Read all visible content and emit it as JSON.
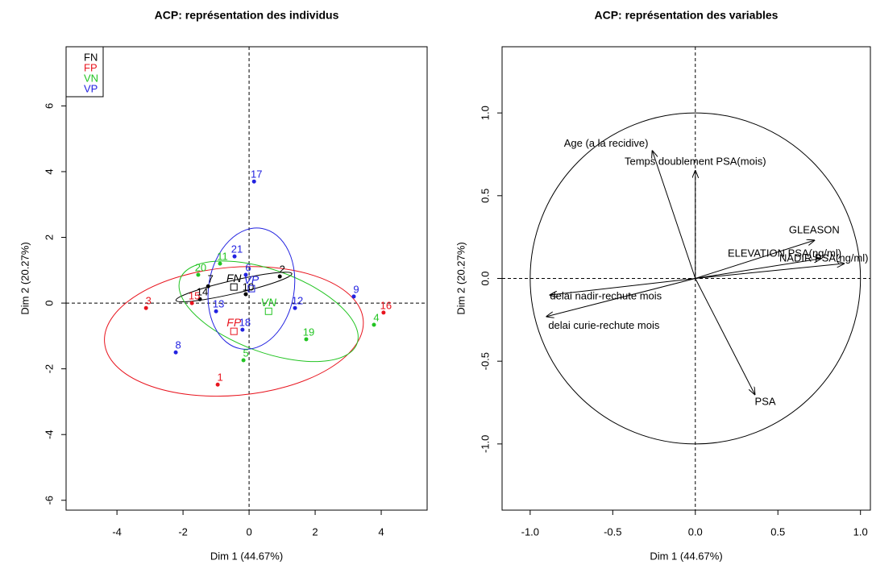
{
  "chart_data": [
    {
      "type": "scatter",
      "title": "ACP: représentation des individus",
      "x_label": "Dim 1 (44.67%)",
      "y_label": "Dim 2 (20.27%)",
      "xlim": [
        -5.54,
        5.39
      ],
      "ylim": [
        -6.3,
        7.8
      ],
      "xticks": [
        -4,
        -2,
        0,
        2,
        4
      ],
      "yticks": [
        -6,
        -4,
        -2,
        0,
        2,
        4,
        6
      ],
      "legend": "top-left",
      "series": [
        {
          "name": "FN",
          "color": "#000000",
          "labels": [
            "2",
            "7",
            "10",
            "14"
          ],
          "x": [
            0.93,
            -1.24,
            -0.1,
            -1.49
          ],
          "y": [
            0.81,
            0.51,
            0.27,
            0.12
          ],
          "centroid": [
            -0.46,
            0.49
          ],
          "ellipse_rx": 1.8,
          "ellipse_ry": 0.2,
          "ellipse_angle": 13
        },
        {
          "name": "FP",
          "color": "#e8141e",
          "labels": [
            "1",
            "3",
            "15",
            "16"
          ],
          "x": [
            -0.95,
            -3.12,
            -1.73,
            4.07
          ],
          "y": [
            -2.48,
            -0.15,
            0.0,
            -0.29
          ],
          "centroid": [
            -0.46,
            -0.86
          ],
          "ellipse_rx": 3.93,
          "ellipse_ry": 1.95,
          "ellipse_angle": 5
        },
        {
          "name": "VN",
          "color": "#22c422",
          "labels": [
            "4",
            "5",
            "11",
            "19",
            "20"
          ],
          "x": [
            3.78,
            -0.17,
            -0.88,
            1.73,
            -1.54
          ],
          "y": [
            -0.66,
            -1.74,
            1.2,
            -1.1,
            0.86
          ],
          "centroid": [
            0.59,
            -0.25
          ],
          "ellipse_rx": 2.85,
          "ellipse_ry": 1.25,
          "ellipse_angle": -20
        },
        {
          "name": "VP",
          "color": "#2222e0",
          "labels": [
            "6",
            "8",
            "9",
            "12",
            "13",
            "17",
            "18",
            "21"
          ],
          "x": [
            -0.1,
            -2.22,
            3.17,
            1.39,
            -1.0,
            0.15,
            -0.2,
            -0.44
          ],
          "y": [
            0.86,
            -1.5,
            0.2,
            -0.15,
            -0.25,
            3.7,
            -0.81,
            1.42
          ],
          "centroid": [
            0.07,
            0.44
          ],
          "ellipse_rx": 1.85,
          "ellipse_ry": 1.3,
          "ellipse_angle": 80
        }
      ]
    },
    {
      "type": "vectors",
      "title": "ACP: représentation des variables",
      "x_label": "Dim 1 (44.67%)",
      "y_label": "Dim 2 (20.27%)",
      "xlim": [
        -1.17,
        1.06
      ],
      "ylim": [
        -1.4,
        1.4
      ],
      "xticks": [
        {
          "value": -1.0,
          "label": "-1.0"
        },
        -0.5,
        {
          "value": 0,
          "label": "0.0"
        },
        0.5,
        {
          "value": 1.0,
          "label": "1.0"
        }
      ],
      "yticks": [
        {
          "value": -1.0,
          "label": "-1.0"
        },
        -0.5,
        {
          "value": 0,
          "label": "0.0"
        },
        0.5,
        {
          "value": 1.0,
          "label": "1.0"
        }
      ],
      "labels": [
        "Age (a la recidive)",
        "Temps doublement PSA(mois)",
        "GLEASON",
        "ELEVATION PSA(ng/ml)",
        "NADIR PSA(ng/ml)",
        "delai nadir-rechute mois",
        "delai curie-rechute mois",
        "PSA"
      ],
      "x": [
        -0.26,
        0.0,
        0.72,
        0.76,
        0.9,
        -0.88,
        -0.9,
        0.36
      ],
      "y": [
        0.77,
        0.65,
        0.23,
        0.12,
        0.09,
        -0.1,
        -0.23,
        -0.7
      ]
    }
  ]
}
